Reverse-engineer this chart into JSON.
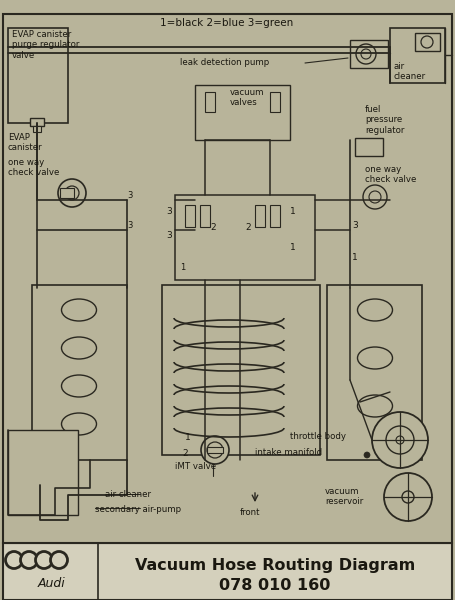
{
  "title": "Vacuum Hose Routing Diagram",
  "subtitle": "078 010 160",
  "legend_text": "1=black 2=blue 3=green",
  "bg_color": "#b8b49a",
  "diagram_bg": "#b8b49a",
  "footer_bg": "#d4d0bc",
  "line_color": "#2a2820",
  "label_color": "#1a1810",
  "figsize": [
    4.55,
    6.0
  ],
  "dpi": 100
}
